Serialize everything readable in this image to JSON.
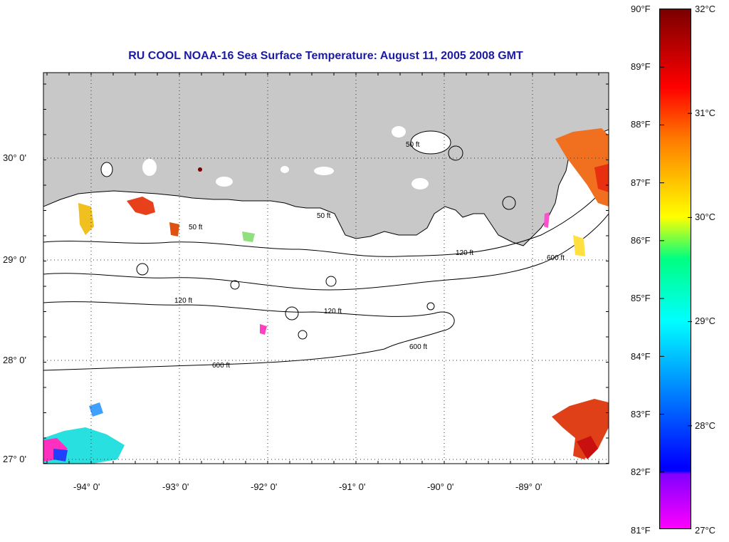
{
  "title": "RU COOL  NOAA-16  Sea Surface Temperature:  August 11, 2005 2008 GMT",
  "map": {
    "lon_range": [
      -94.55,
      -88.2
    ],
    "lat_range": [
      26.9,
      30.85
    ],
    "lat_labels": [
      "30° 0'",
      "29° 0'",
      "28° 0'",
      "27° 0'"
    ],
    "lon_labels": [
      "-94° 0'",
      "-93° 0'",
      "-92° 0'",
      "-91° 0'",
      "-90° 0'",
      "-89° 0'"
    ],
    "land_color": "#c8c8c8",
    "ocean_color": "#ffffff",
    "grid": "dotted",
    "contour_labels": [
      "50 ft",
      "120 ft",
      "600 ft"
    ]
  },
  "colorbar": {
    "fahrenheit_labels": [
      "90°F",
      "89°F",
      "88°F",
      "87°F",
      "86°F",
      "85°F",
      "84°F",
      "83°F",
      "82°F",
      "81°F"
    ],
    "celsius_labels": [
      "32°C",
      "31°C",
      "30°C",
      "29°C",
      "28°C",
      "27°C"
    ],
    "colors": [
      "#7a0000",
      "#ff0000",
      "#ff7a00",
      "#ffff00",
      "#00ff80",
      "#00ffff",
      "#0000ff",
      "#8000ff",
      "#ff00ff"
    ]
  }
}
